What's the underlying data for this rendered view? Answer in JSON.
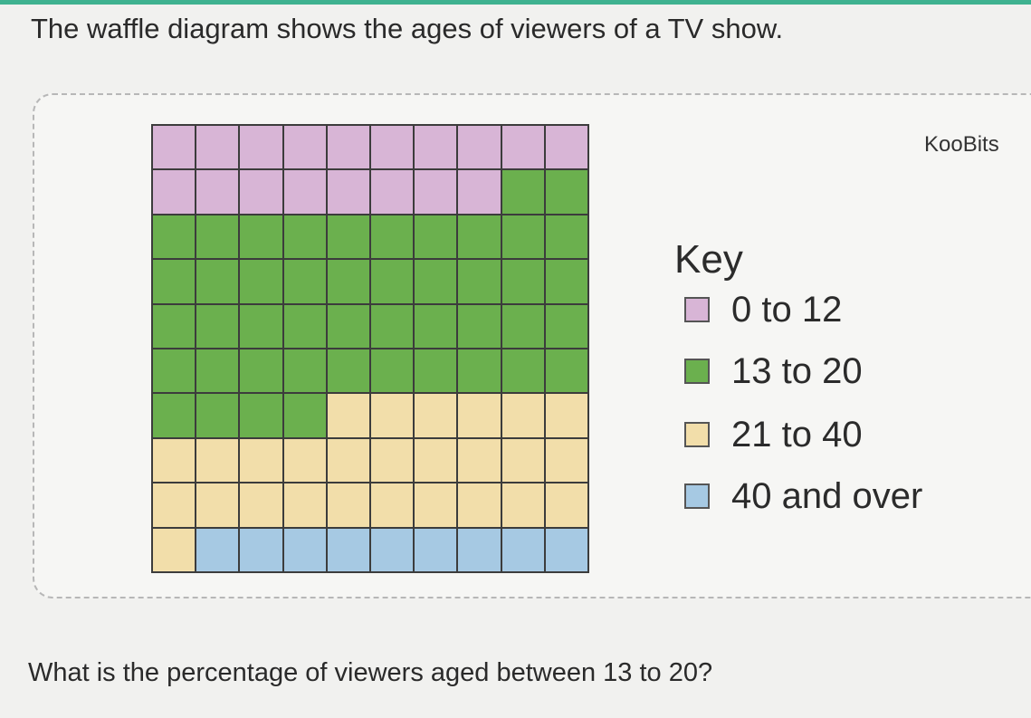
{
  "header": {
    "title": "The waffle diagram shows the ages of viewers of a TV show."
  },
  "brand": {
    "label": "KooBits"
  },
  "key": {
    "title": "Key",
    "items": [
      {
        "label": "0 to 12",
        "color": "#d8b5d6"
      },
      {
        "label": "13 to 20",
        "color": "#6bb04e"
      },
      {
        "label": "21 to 40",
        "color": "#f2deaa"
      },
      {
        "label": "40 and over",
        "color": "#a6c9e3"
      }
    ]
  },
  "chart_data": {
    "type": "waffle",
    "grid": [
      10,
      10
    ],
    "categories": [
      "0 to 12",
      "13 to 20",
      "21 to 40",
      "40 and over"
    ],
    "values": [
      18,
      46,
      27,
      9
    ],
    "colors": [
      "#d8b5d6",
      "#6bb04e",
      "#f2deaa",
      "#a6c9e3"
    ]
  },
  "question": {
    "text": "What is the percentage of viewers aged between 13 to 20?"
  }
}
